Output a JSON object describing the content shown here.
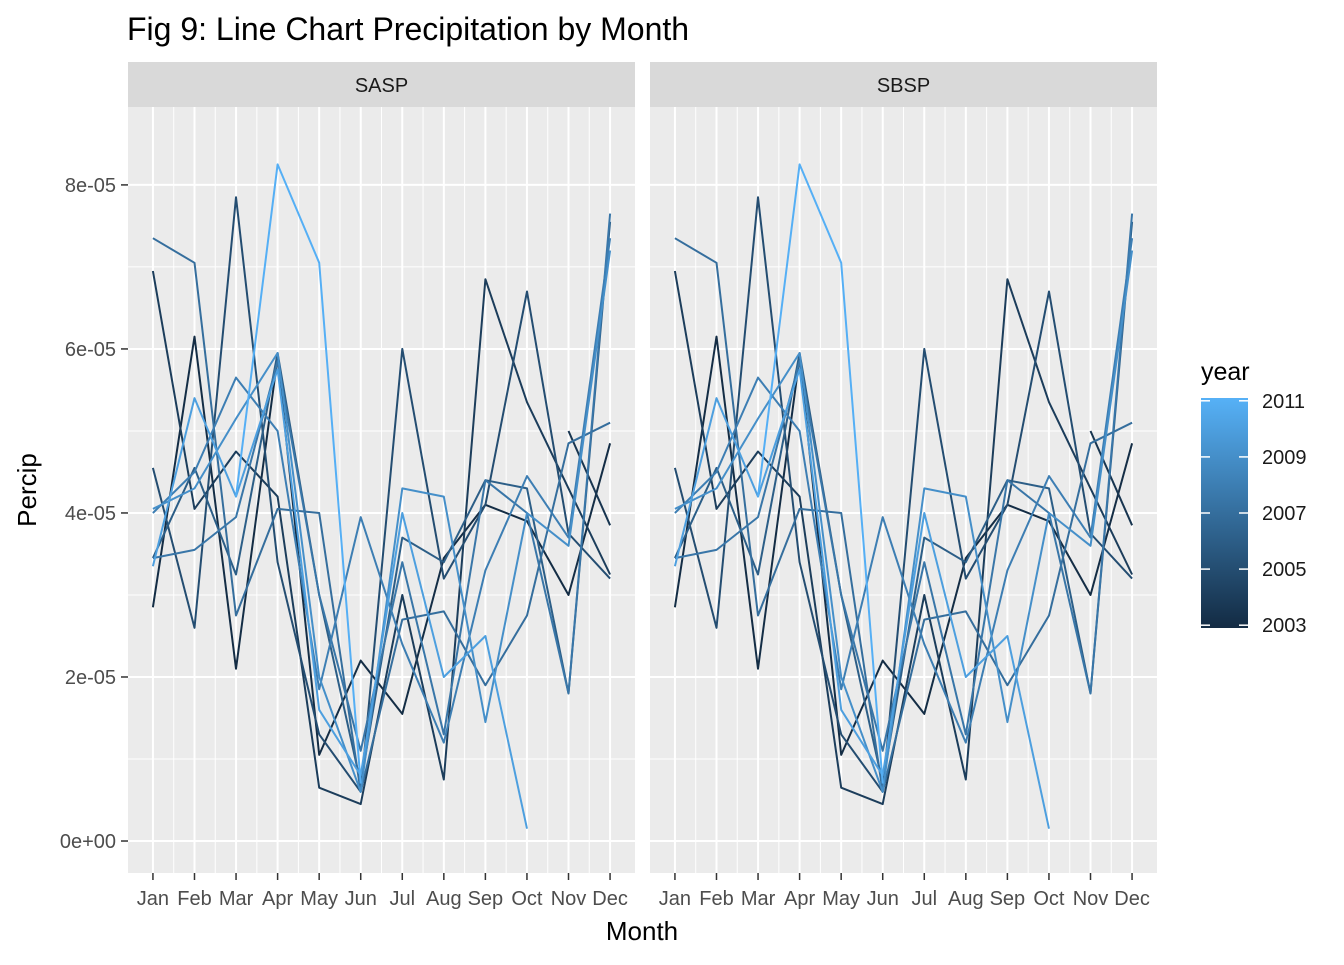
{
  "chart_data": {
    "type": "line",
    "title": "Fig 9: Line Chart Precipitation by Month",
    "xlabel": "Month",
    "ylabel": "Percip",
    "categories": [
      "Jan",
      "Feb",
      "Mar",
      "Apr",
      "May",
      "Jun",
      "Jul",
      "Aug",
      "Sep",
      "Oct",
      "Nov",
      "Dec"
    ],
    "ylim": [
      -3.9e-06,
      8.95e-05
    ],
    "yticks": [
      {
        "value": 0,
        "label": "0e+00"
      },
      {
        "value": 2e-05,
        "label": "2e-05"
      },
      {
        "value": 4e-05,
        "label": "4e-05"
      },
      {
        "value": 6e-05,
        "label": "6e-05"
      },
      {
        "value": 8e-05,
        "label": "8e-05"
      }
    ],
    "grid": true,
    "panels": [
      "SASP",
      "SBSP"
    ],
    "legend": {
      "title": "year",
      "position": "right",
      "type": "colorbar",
      "low_color": "#132B43",
      "high_color": "#56B1F7",
      "range": [
        2002.9,
        2011.1
      ],
      "breaks": [
        {
          "value": 2011,
          "label": "2011"
        },
        {
          "value": 2009,
          "label": "2009"
        },
        {
          "value": 2007,
          "label": "2007"
        },
        {
          "value": 2005,
          "label": "2005"
        },
        {
          "value": 2003,
          "label": "2003"
        }
      ]
    },
    "series": [
      {
        "year": 2003,
        "values": [
          2.85e-05,
          6.15e-05,
          2.1e-05,
          5.9e-05,
          1.05e-05,
          2.2e-05,
          1.55e-05,
          3.45e-05,
          4.1e-05,
          3.9e-05,
          3e-05,
          4.85e-05
        ]
      },
      {
        "year": 2003.5,
        "values": [
          null,
          null,
          null,
          null,
          null,
          null,
          null,
          null,
          null,
          null,
          5e-05,
          3.85e-05
        ]
      },
      {
        "year": 2004,
        "values": [
          6.95e-05,
          4.05e-05,
          4.75e-05,
          4.2e-05,
          6.5e-06,
          4.5e-06,
          3e-05,
          7.5e-06,
          6.85e-05,
          5.35e-05,
          4.3e-05,
          3.25e-05
        ]
      },
      {
        "year": 2005,
        "values": [
          4.55e-05,
          2.6e-05,
          7.85e-05,
          3.4e-05,
          1.3e-05,
          6e-06,
          6e-05,
          3.2e-05,
          4.1e-05,
          6.7e-05,
          3.75e-05,
          3.2e-05
        ]
      },
      {
        "year": 2006,
        "values": [
          3.45e-05,
          4.55e-05,
          3.25e-05,
          5.95e-05,
          3e-05,
          7e-06,
          3.7e-05,
          3.4e-05,
          4.4e-05,
          4.3e-05,
          1.8e-05,
          7.55e-05
        ]
      },
      {
        "year": 2007,
        "values": [
          7.35e-05,
          7.05e-05,
          2.75e-05,
          4.05e-05,
          4e-05,
          6e-06,
          2.7e-05,
          2.8e-05,
          1.9e-05,
          2.75e-05,
          4.85e-05,
          5.1e-05
        ]
      },
      {
        "year": 2007.5,
        "values": [
          3.45e-05,
          3.55e-05,
          3.95e-05,
          5.85e-05,
          3e-05,
          1.1e-05,
          3.4e-05,
          1.3e-05,
          4.4e-05,
          4e-05,
          1.8e-05,
          7.65e-05
        ]
      },
      {
        "year": 2008,
        "values": [
          4e-05,
          4.5e-05,
          5.65e-05,
          5e-05,
          1.85e-05,
          3.95e-05,
          2.4e-05,
          1.2e-05,
          3.3e-05,
          4.45e-05,
          3.7e-05,
          7.35e-05
        ]
      },
      {
        "year": 2009,
        "values": [
          4.05e-05,
          4.3e-05,
          5.15e-05,
          5.95e-05,
          2e-05,
          6e-06,
          4.3e-05,
          4.2e-05,
          1.45e-05,
          4e-05,
          3.6e-05,
          7.2e-05
        ]
      },
      {
        "year": 2010,
        "values": [
          3.35e-05,
          5.4e-05,
          4.2e-05,
          5.75e-05,
          1.6e-05,
          8e-06,
          4e-05,
          2e-05,
          2.5e-05,
          1.5e-06,
          null,
          null
        ]
      },
      {
        "year": 2011,
        "values": [
          null,
          null,
          4.2e-05,
          8.25e-05,
          7.05e-05,
          7e-06,
          null,
          null,
          null,
          null,
          null,
          null
        ]
      }
    ]
  }
}
